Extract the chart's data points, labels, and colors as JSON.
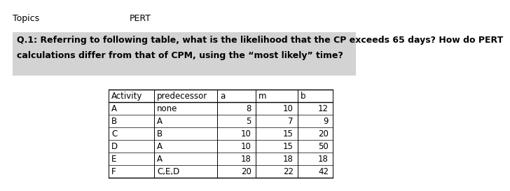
{
  "title_left": "Topics",
  "title_right": "PERT",
  "question_line1": "Q.1: Referring to following table, what is the likelihood that the CP exceeds 65 days? How do PERT",
  "question_line2": "calculations differ from that of CPM, using the “most likely” time?",
  "question_bg": "#d3d3d3",
  "table_headers": [
    "Activity",
    "predecessor",
    "a",
    "m",
    "b"
  ],
  "table_rows": [
    [
      "A",
      "none",
      "8",
      "10",
      "12"
    ],
    [
      "B",
      "A",
      "5",
      "7",
      "9"
    ],
    [
      "C",
      "B",
      "10",
      "15",
      "20"
    ],
    [
      "D",
      "A",
      "10",
      "15",
      "50"
    ],
    [
      "E",
      "A",
      "18",
      "18",
      "18"
    ],
    [
      "F",
      "C,E,D",
      "20",
      "22",
      "42"
    ]
  ],
  "bg_color": "#ffffff",
  "font_size": 8.5,
  "title_font_size": 9,
  "question_font_size": 9.0
}
